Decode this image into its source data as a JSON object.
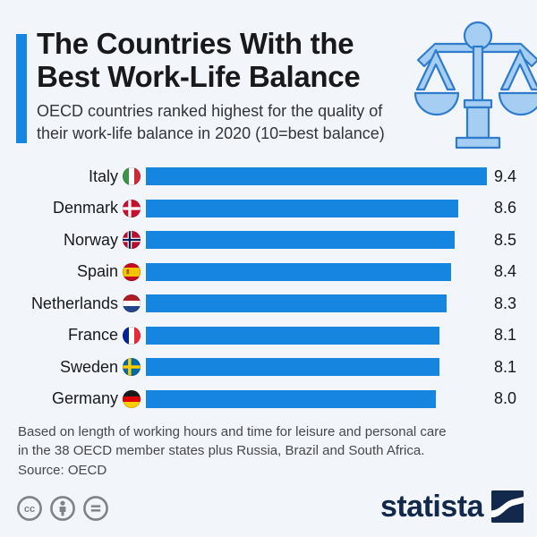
{
  "page": {
    "background": "#f2f6fa",
    "accent_color": "#1585e0"
  },
  "header": {
    "title_line1": "The Countries With the",
    "title_line2": "Best Work-Life Balance",
    "subtitle_line1": "OECD countries ranked highest for the quality of",
    "subtitle_line2": "their work-life balance in 2020 (10=best balance)"
  },
  "chart_data": {
    "type": "bar",
    "orientation": "horizontal",
    "title": "The Countries With the Best Work-Life Balance",
    "categories": [
      "Italy",
      "Denmark",
      "Norway",
      "Spain",
      "Netherlands",
      "France",
      "Sweden",
      "Germany"
    ],
    "values": [
      9.4,
      8.6,
      8.5,
      8.4,
      8.3,
      8.1,
      8.1,
      8.0
    ],
    "value_labels": [
      "9.4",
      "8.6",
      "8.5",
      "8.4",
      "8.3",
      "8.1",
      "8.1",
      "8.0"
    ],
    "flags": [
      "italy-flag",
      "denmark-flag",
      "norway-flag",
      "spain-flag",
      "netherlands-flag",
      "france-flag",
      "sweden-flag",
      "germany-flag"
    ],
    "xlim": [
      0,
      9.4
    ],
    "bar_color": "#1585e0",
    "grid": false,
    "legend": false
  },
  "footer": {
    "note_line1": "Based on length of working hours and time for leisure and personal care",
    "note_line2": "in the 38 OECD member states plus Russia, Brazil and South Africa.",
    "source": "Source: OECD",
    "license_icons": [
      "cc-icon",
      "attribution-icon",
      "no-derivatives-icon"
    ],
    "brand": "statista"
  }
}
